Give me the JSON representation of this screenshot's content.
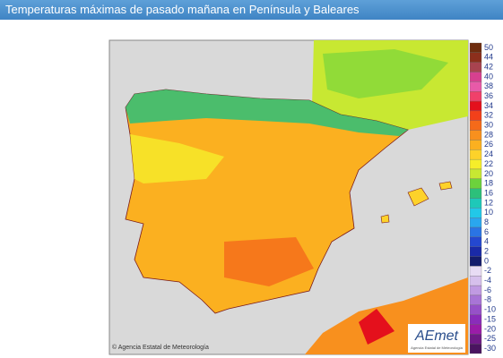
{
  "header": {
    "title": "Temperaturas máximas de pasado mañana en Península y Baleares"
  },
  "map": {
    "copyright": "© Agencia Estatal de Meteorología",
    "logo": "AEmet",
    "logo_subtitle": "Agencia Estatal de Meteorología"
  },
  "legend": {
    "items": [
      {
        "value": 50,
        "color": "#6e2c0e"
      },
      {
        "value": 44,
        "color": "#8c2f1c"
      },
      {
        "value": 42,
        "color": "#a8434f"
      },
      {
        "value": 40,
        "color": "#d6408f"
      },
      {
        "value": 38,
        "color": "#e85aa8"
      },
      {
        "value": 36,
        "color": "#f0406a"
      },
      {
        "value": 34,
        "color": "#e4101c"
      },
      {
        "value": 32,
        "color": "#f2401a"
      },
      {
        "value": 30,
        "color": "#f56a1a"
      },
      {
        "value": 28,
        "color": "#f8901e"
      },
      {
        "value": 26,
        "color": "#fbb020"
      },
      {
        "value": 24,
        "color": "#fdd22a"
      },
      {
        "value": 22,
        "color": "#f6ee2a"
      },
      {
        "value": 20,
        "color": "#c8e832"
      },
      {
        "value": 18,
        "color": "#6cd23c"
      },
      {
        "value": 16,
        "color": "#2cc07a"
      },
      {
        "value": 12,
        "color": "#1ec8b8"
      },
      {
        "value": 10,
        "color": "#22c8e8"
      },
      {
        "value": 8,
        "color": "#2aa6ee"
      },
      {
        "value": 6,
        "color": "#2a74e4"
      },
      {
        "value": 4,
        "color": "#2448d0"
      },
      {
        "value": 2,
        "color": "#1a2aa8"
      },
      {
        "value": 0,
        "color": "#141c6c"
      },
      {
        "value": -2,
        "color": "#e8dcf4"
      },
      {
        "value": -4,
        "color": "#d6c0ec"
      },
      {
        "value": -6,
        "color": "#c09ae2"
      },
      {
        "value": -8,
        "color": "#a874d6"
      },
      {
        "value": -10,
        "color": "#9650c8"
      },
      {
        "value": -15,
        "color": "#8a2cba"
      },
      {
        "value": -20,
        "color": "#9a1ca8"
      },
      {
        "value": -25,
        "color": "#6e1a86"
      },
      {
        "value": -30,
        "color": "#4a1460"
      }
    ]
  }
}
